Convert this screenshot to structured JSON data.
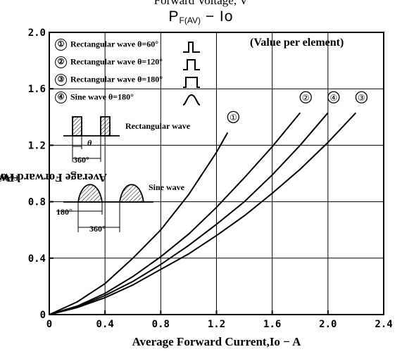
{
  "header_cut": "Forward Voltage, V",
  "chart_data": {
    "type": "line",
    "title": {
      "main": "P",
      "sub": "F(AV)",
      "rest": " − Io"
    },
    "xlabel": "Average Forward Current,Io − A",
    "ylabel": {
      "main": "Average Forward Power Dissipation,P",
      "sub": "F(AV)",
      "unit": " − W"
    },
    "xlim": [
      0,
      2.4
    ],
    "ylim": [
      0,
      2.0
    ],
    "x_ticks": [
      "0",
      "0.4",
      "0.8",
      "1.2",
      "1.6",
      "2.0",
      "2.4"
    ],
    "y_ticks": [
      "0",
      "0.4",
      "0.8",
      "1.2",
      "1.6",
      "2.0"
    ],
    "grid": true,
    "note": "(Value per element)",
    "series": [
      {
        "name": "Rectangular wave θ=60°",
        "label": "①",
        "points": [
          [
            0,
            0
          ],
          [
            0.2,
            0.09
          ],
          [
            0.4,
            0.22
          ],
          [
            0.6,
            0.4
          ],
          [
            0.8,
            0.6
          ],
          [
            1.0,
            0.85
          ],
          [
            1.2,
            1.15
          ],
          [
            1.28,
            1.29
          ]
        ]
      },
      {
        "name": "Rectangular wave θ=120°",
        "label": "②",
        "points": [
          [
            0,
            0
          ],
          [
            0.2,
            0.06
          ],
          [
            0.4,
            0.15
          ],
          [
            0.6,
            0.27
          ],
          [
            0.8,
            0.41
          ],
          [
            1.0,
            0.57
          ],
          [
            1.2,
            0.76
          ],
          [
            1.4,
            0.97
          ],
          [
            1.6,
            1.19
          ],
          [
            1.8,
            1.43
          ]
        ]
      },
      {
        "name": "Rectangular wave θ=180°",
        "label": "③",
        "points": [
          [
            0,
            0
          ],
          [
            0.2,
            0.05
          ],
          [
            0.4,
            0.12
          ],
          [
            0.6,
            0.21
          ],
          [
            0.8,
            0.32
          ],
          [
            1.0,
            0.43
          ],
          [
            1.2,
            0.56
          ],
          [
            1.4,
            0.7
          ],
          [
            1.6,
            0.86
          ],
          [
            1.8,
            1.03
          ],
          [
            2.0,
            1.22
          ],
          [
            2.2,
            1.43
          ]
        ]
      },
      {
        "name": "Sine wave θ=180°",
        "label": "④",
        "points": [
          [
            0,
            0
          ],
          [
            0.2,
            0.055
          ],
          [
            0.4,
            0.135
          ],
          [
            0.6,
            0.235
          ],
          [
            0.8,
            0.355
          ],
          [
            1.0,
            0.49
          ],
          [
            1.2,
            0.64
          ],
          [
            1.4,
            0.8
          ],
          [
            1.6,
            0.99
          ],
          [
            1.8,
            1.2
          ],
          [
            2.0,
            1.43
          ]
        ]
      }
    ],
    "waveform_labels": {
      "rect_theta": "θ",
      "rect_period": "360°",
      "rect_name": "Rectangular wave",
      "sine_name": "Sine wave",
      "sine_half": "180°",
      "sine_period": "360°"
    },
    "line_color": "#000000"
  }
}
